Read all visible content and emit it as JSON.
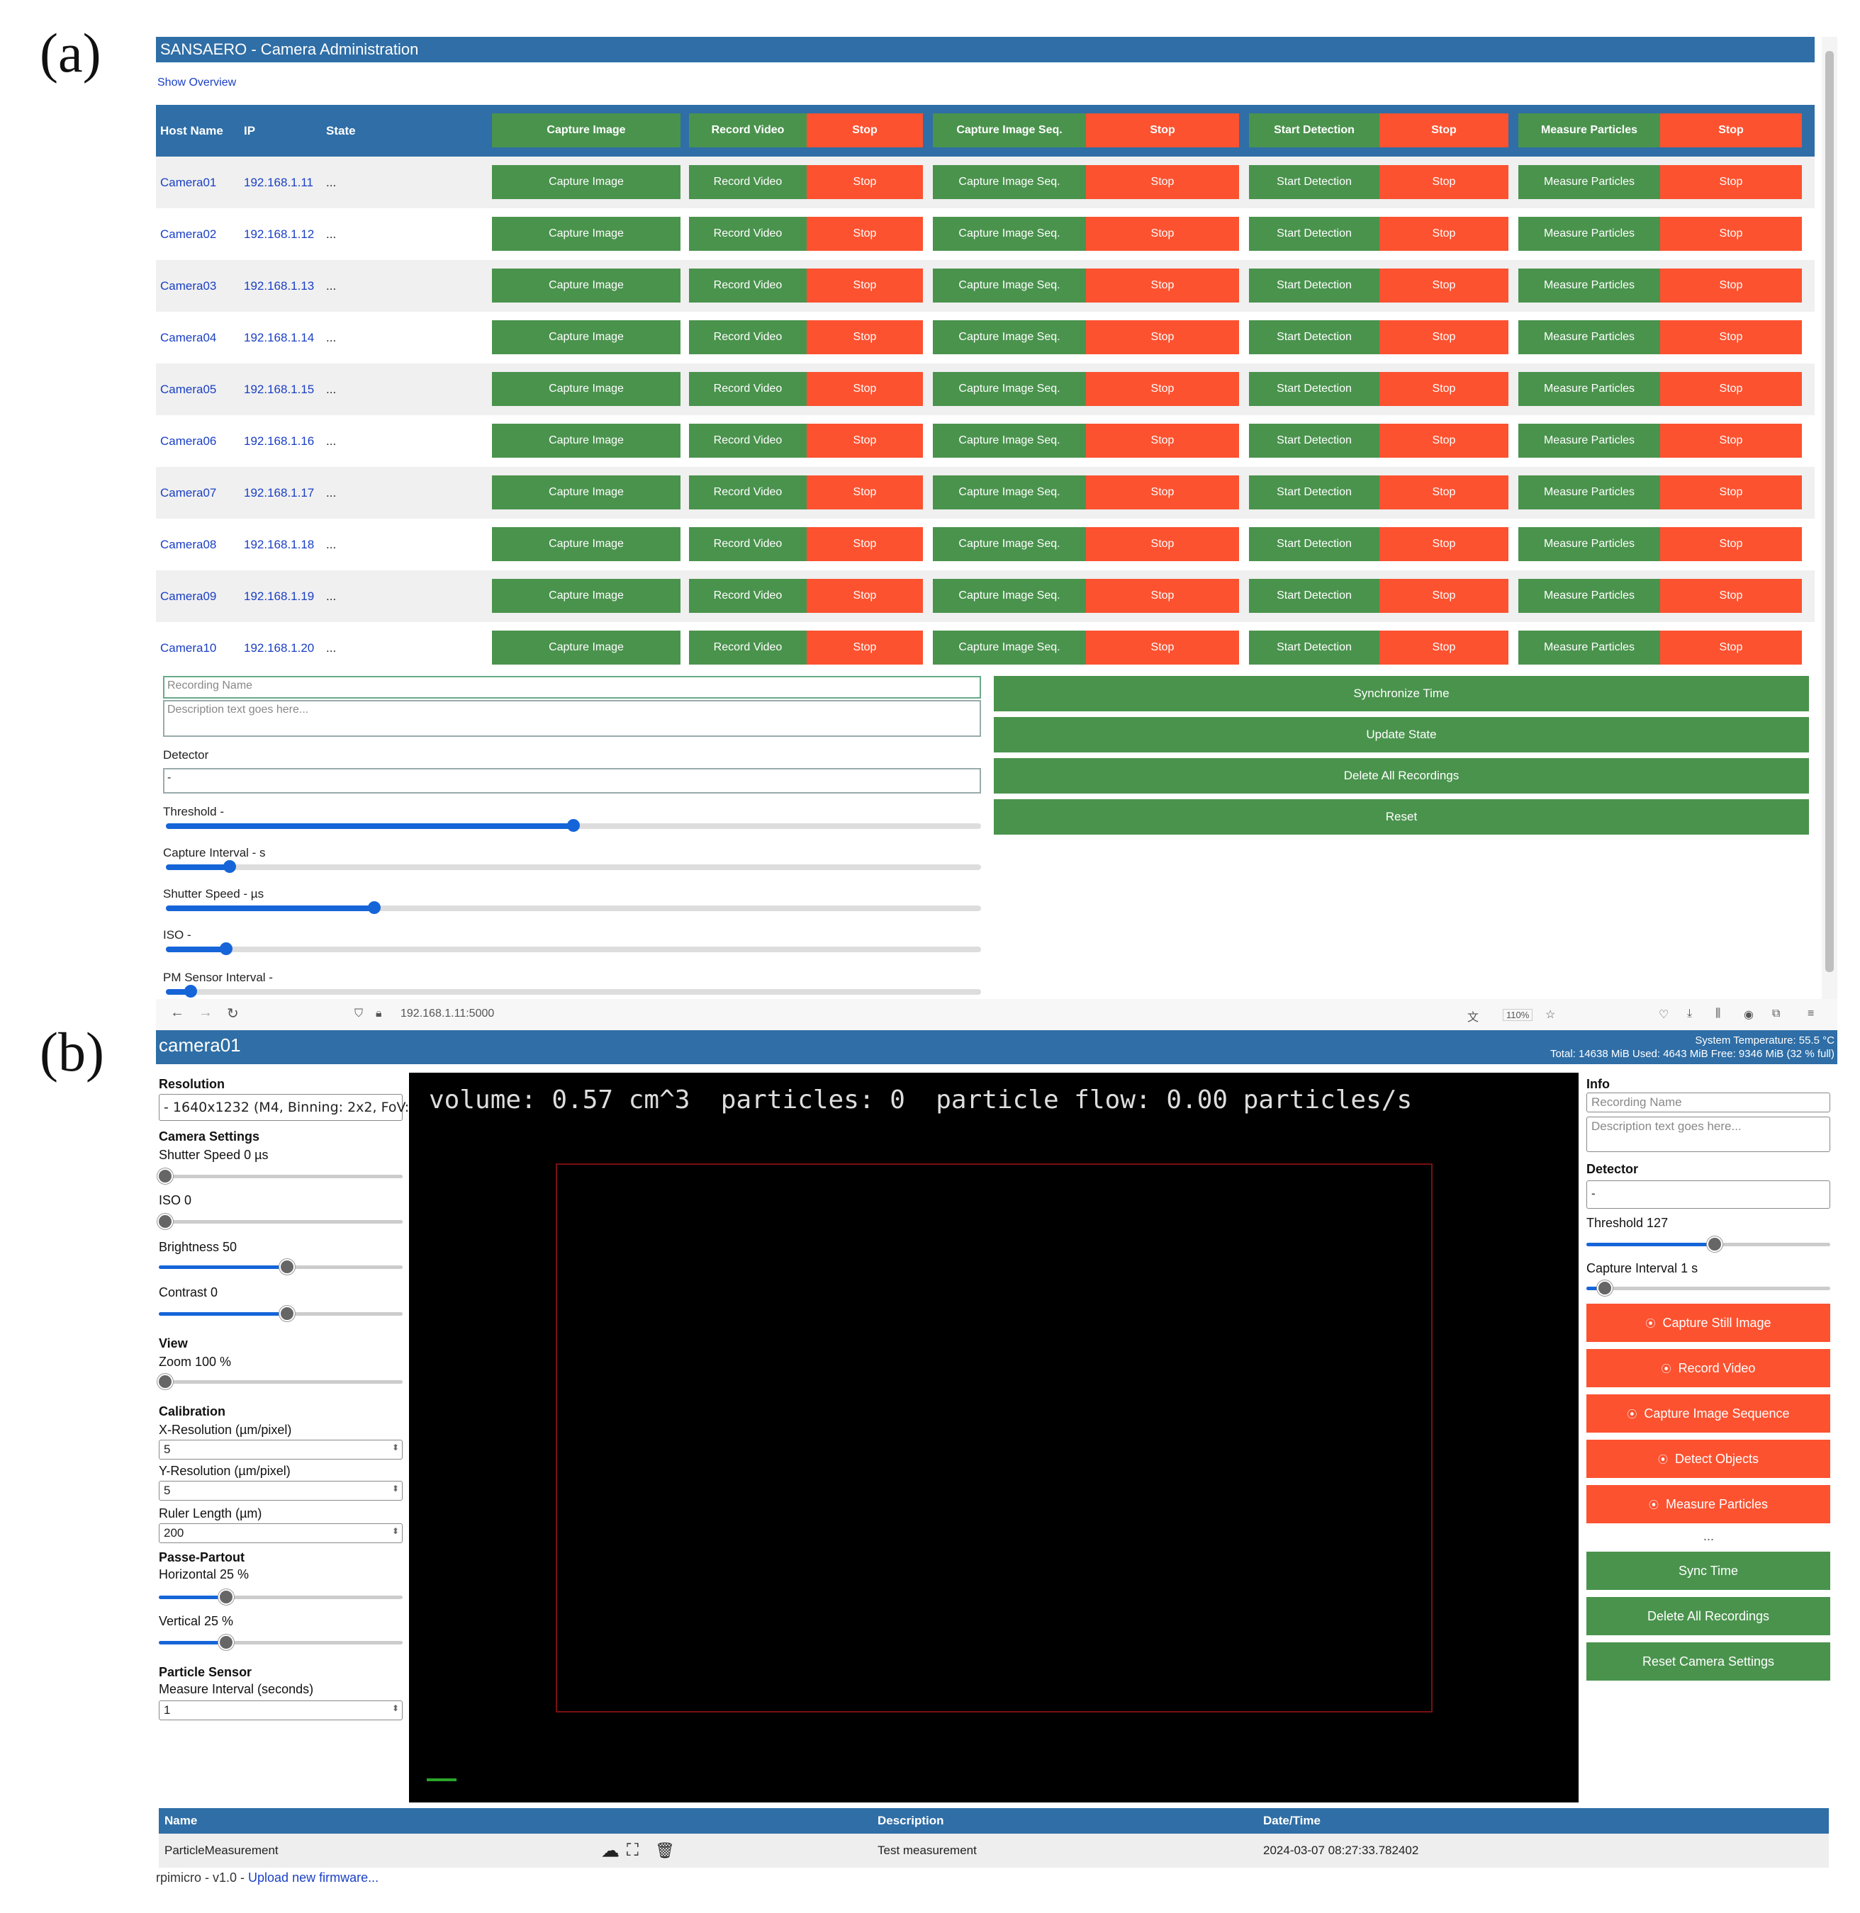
{
  "labels": {
    "a": "(a)",
    "b": "(b)"
  },
  "panel_a": {
    "title": "SANSAERO - Camera Administration",
    "show_overview": "Show Overview",
    "header": {
      "host": "Host Name",
      "ip": "IP",
      "state": "State"
    },
    "buttons": {
      "capture_image": "Capture Image",
      "record_video": "Record Video",
      "stop": "Stop",
      "capture_seq": "Capture Image Seq.",
      "start_detection": "Start Detection",
      "measure_particles": "Measure Particles"
    },
    "cameras": [
      {
        "host": "Camera01",
        "ip": "192.168.1.11",
        "state": "..."
      },
      {
        "host": "Camera02",
        "ip": "192.168.1.12",
        "state": "..."
      },
      {
        "host": "Camera03",
        "ip": "192.168.1.13",
        "state": "..."
      },
      {
        "host": "Camera04",
        "ip": "192.168.1.14",
        "state": "..."
      },
      {
        "host": "Camera05",
        "ip": "192.168.1.15",
        "state": "..."
      },
      {
        "host": "Camera06",
        "ip": "192.168.1.16",
        "state": "..."
      },
      {
        "host": "Camera07",
        "ip": "192.168.1.17",
        "state": "..."
      },
      {
        "host": "Camera08",
        "ip": "192.168.1.18",
        "state": "..."
      },
      {
        "host": "Camera09",
        "ip": "192.168.1.19",
        "state": "..."
      },
      {
        "host": "Camera10",
        "ip": "192.168.1.20",
        "state": "..."
      }
    ],
    "form": {
      "recording_name_placeholder": "Recording Name",
      "description_placeholder": "Description text goes here...",
      "detector_label": "Detector",
      "detector_value": "-",
      "sliders": [
        {
          "label": "Threshold -",
          "level": 0.5
        },
        {
          "label": "Capture Interval - s",
          "level": 0.078
        },
        {
          "label": "Shutter Speed - µs",
          "level": 0.256
        },
        {
          "label": "ISO -",
          "level": 0.074
        },
        {
          "label": "PM Sensor Interval -",
          "level": 0.03
        }
      ]
    },
    "actions": [
      "Synchronize Time",
      "Update State",
      "Delete All Recordings",
      "Reset"
    ]
  },
  "panel_b": {
    "browser": {
      "url": "192.168.1.11:5000",
      "zoom": "110%"
    },
    "header": {
      "title": "camera01",
      "temp": "System Temperature: 55.5 °C",
      "disk": "Total: 14638 MiB Used: 4643 MiB Free: 9346 MiB (32 % full)"
    },
    "left": {
      "resolution_title": "Resolution",
      "resolution_value": "- 1640x1232 (M4, Binning: 2x2, FoV:",
      "camera_settings_title": "Camera Settings",
      "shutter_label": "Shutter Speed 0 µs",
      "shutter_level": 0.0,
      "iso_label": "ISO 0",
      "iso_level": 0.0,
      "brightness_label": "Brightness 50",
      "brightness_level": 0.5,
      "contrast_label": "Contrast 0",
      "contrast_level": 0.5,
      "view_title": "View",
      "zoom_label": "Zoom 100 %",
      "zoom_level": 0.0,
      "calibration_title": "Calibration",
      "xres_label": "X-Resolution (µm/pixel)",
      "xres_value": "5",
      "yres_label": "Y-Resolution (µm/pixel)",
      "yres_value": "5",
      "ruler_label": "Ruler Length (µm)",
      "ruler_value": "200",
      "passe_title": "Passe-Partout",
      "horizontal_label": "Horizontal 25 %",
      "horizontal_level": 0.25,
      "vertical_label": "Vertical 25 %",
      "vertical_level": 0.25,
      "particle_title": "Particle Sensor",
      "measure_label": "Measure Interval (seconds)",
      "measure_value": "1"
    },
    "video_overlay": "volume: 0.57 cm^3  particles: 0  particle flow: 0.00 particles/s",
    "right": {
      "info_title": "Info",
      "recording_name_placeholder": "Recording Name",
      "description_placeholder": "Description text goes here...",
      "detector_title": "Detector",
      "detector_value": "-",
      "threshold_label": "Threshold 127",
      "threshold_level": 0.5,
      "interval_label": "Capture Interval 1 s",
      "interval_level": 0.05,
      "red_buttons": [
        "Capture Still Image",
        "Record Video",
        "Capture Image Sequence",
        "Detect Objects",
        "Measure Particles"
      ],
      "ellipsis": "...",
      "green_buttons": [
        "Sync Time",
        "Delete All Recordings",
        "Reset Camera Settings"
      ]
    },
    "table": {
      "headers": {
        "name": "Name",
        "description": "Description",
        "datetime": "Date/Time"
      },
      "rows": [
        {
          "name": "ParticleMeasurement",
          "description": "Test measurement",
          "datetime": "2024-03-07 08:27:33.782402"
        }
      ]
    },
    "footer": {
      "version": "rpimicro - v1.0 - ",
      "firmware_link": "Upload new firmware..."
    }
  }
}
